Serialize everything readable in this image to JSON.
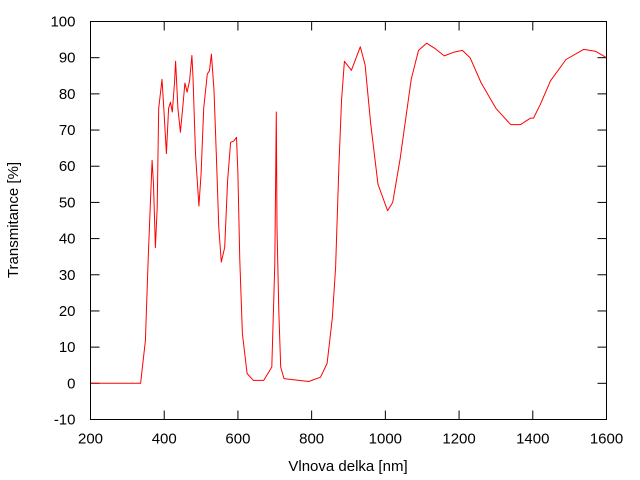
{
  "chart_data": {
    "type": "line",
    "title": "",
    "xlabel": "Vlnova delka [nm]",
    "ylabel": "Transmitance [%]",
    "xlim": [
      200,
      1600
    ],
    "ylim": [
      -10,
      100
    ],
    "xticks": [
      200,
      400,
      600,
      800,
      1000,
      1200,
      1400,
      1600
    ],
    "yticks": [
      -10,
      0,
      10,
      20,
      30,
      40,
      50,
      60,
      70,
      80,
      90,
      100
    ],
    "grid": false,
    "legend": "none",
    "series": [
      {
        "color": "#ff0000",
        "x": [
          200,
          336,
          349,
          357,
          367,
          371,
          376,
          381,
          385,
          394,
          399,
          406,
          412,
          417,
          422,
          428,
          431,
          437,
          444,
          451,
          456,
          462,
          469,
          475,
          478,
          485,
          494,
          500,
          507,
          517,
          523,
          528,
          535,
          542,
          548,
          555,
          564,
          572,
          580,
          589,
          596,
          600,
          605,
          612,
          625,
          642,
          670,
          692,
          700,
          704,
          706,
          711,
          716,
          725,
          792,
          824,
          842,
          856,
          865,
          874,
          881,
          889,
          908,
          932,
          945,
          960,
          980,
          1006,
          1020,
          1040,
          1070,
          1090,
          1112,
          1135,
          1160,
          1185,
          1209,
          1230,
          1260,
          1300,
          1340,
          1367,
          1394,
          1402,
          1420,
          1448,
          1490,
          1538,
          1570,
          1600
        ],
        "y": [
          0,
          0,
          11.8,
          36,
          61.6,
          55,
          37.5,
          48.7,
          76,
          84,
          76,
          63.5,
          76,
          77.7,
          75,
          83,
          89,
          76,
          69.4,
          77,
          83,
          80.5,
          83.7,
          90.6,
          84.6,
          63.5,
          49,
          58,
          76,
          85.5,
          86.4,
          91,
          81,
          61,
          43,
          33.5,
          37.6,
          56,
          66.6,
          67,
          68,
          58,
          34,
          13.7,
          2.7,
          0.8,
          0.8,
          4.5,
          33,
          75,
          43,
          20,
          4.5,
          1.3,
          0.5,
          1.7,
          5.5,
          18,
          32,
          60,
          78,
          89,
          86.5,
          93,
          88,
          72,
          55,
          47.7,
          50,
          62,
          84,
          92,
          94,
          92.5,
          90.5,
          91.5,
          92,
          90,
          83,
          76,
          71.5,
          71.5,
          73.3,
          73.3,
          77,
          83.6,
          89.5,
          92.3,
          91.8,
          90
        ]
      }
    ]
  }
}
